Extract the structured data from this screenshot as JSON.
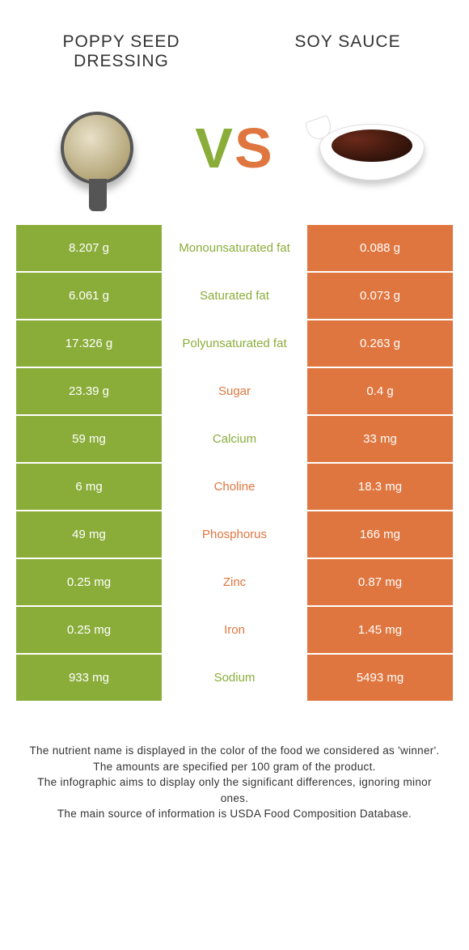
{
  "header": {
    "left_title": "POPPY SEED DRESSING",
    "right_title": "SOY SAUCE",
    "vs_v": "V",
    "vs_s": "S"
  },
  "colors": {
    "green": "#8aad3a",
    "orange": "#e0763f",
    "background": "#ffffff",
    "text": "#333333"
  },
  "table": {
    "rows": [
      {
        "left": "8.207 g",
        "label": "Monounsaturated fat",
        "right": "0.088 g",
        "winner": "left"
      },
      {
        "left": "6.061 g",
        "label": "Saturated fat",
        "right": "0.073 g",
        "winner": "left"
      },
      {
        "left": "17.326 g",
        "label": "Polyunsaturated fat",
        "right": "0.263 g",
        "winner": "left"
      },
      {
        "left": "23.39 g",
        "label": "Sugar",
        "right": "0.4 g",
        "winner": "right"
      },
      {
        "left": "59 mg",
        "label": "Calcium",
        "right": "33 mg",
        "winner": "left"
      },
      {
        "left": "6 mg",
        "label": "Choline",
        "right": "18.3 mg",
        "winner": "right"
      },
      {
        "left": "49 mg",
        "label": "Phosphorus",
        "right": "166 mg",
        "winner": "right"
      },
      {
        "left": "0.25 mg",
        "label": "Zinc",
        "right": "0.87 mg",
        "winner": "right"
      },
      {
        "left": "0.25 mg",
        "label": "Iron",
        "right": "1.45 mg",
        "winner": "right"
      },
      {
        "left": "933 mg",
        "label": "Sodium",
        "right": "5493 mg",
        "winner": "left"
      }
    ]
  },
  "footer": {
    "line1": "The nutrient name is displayed in the color of the food we considered as 'winner'.",
    "line2": "The amounts are specified per 100 gram of the product.",
    "line3": "The infographic aims to display only the significant differences, ignoring minor ones.",
    "line4": "The main source of information is USDA Food Composition Database."
  }
}
